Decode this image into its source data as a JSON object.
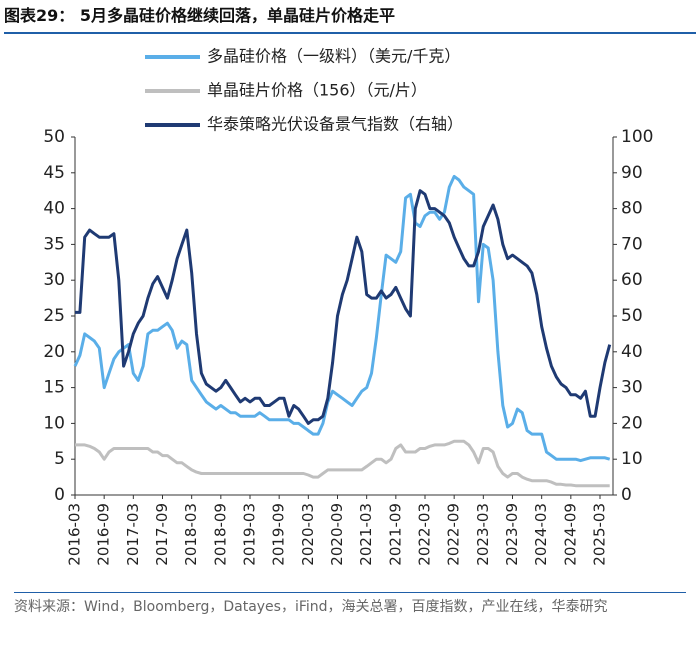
{
  "chart_data": {
    "type": "line",
    "title": "图表29： 5月多晶硅价格继续回落，单晶硅片价格走平",
    "source": "资料来源：Wind，Bloomberg，Datayes，iFind，海关总署，百度指数，产业在线，华泰研究",
    "categories": [
      "2016-03",
      null,
      null,
      null,
      null,
      null,
      "2016-09",
      null,
      null,
      null,
      null,
      null,
      "2017-03",
      null,
      null,
      null,
      null,
      null,
      "2017-09",
      null,
      null,
      null,
      null,
      null,
      "2018-03",
      null,
      null,
      null,
      null,
      null,
      "2018-09",
      null,
      null,
      null,
      null,
      null,
      "2019-03",
      null,
      null,
      null,
      null,
      null,
      "2019-09",
      null,
      null,
      null,
      null,
      null,
      "2020-03",
      null,
      null,
      null,
      null,
      null,
      "2020-09",
      null,
      null,
      null,
      null,
      null,
      "2021-03",
      null,
      null,
      null,
      null,
      null,
      "2021-09",
      null,
      null,
      null,
      null,
      null,
      "2022-03",
      null,
      null,
      null,
      null,
      null,
      "2022-09",
      null,
      null,
      null,
      null,
      null,
      "2023-03",
      null,
      null,
      null,
      null,
      null,
      "2023-09",
      null,
      null,
      null,
      null,
      null,
      "2024-03",
      null,
      null,
      null,
      null,
      null,
      "2024-09",
      null,
      null,
      null,
      null,
      null,
      "2025-03",
      null,
      null
    ],
    "series": [
      {
        "name": "多晶硅价格（一级料）（美元/千克）",
        "color": "#5aaee8",
        "axis": "y",
        "values": [
          18,
          19.5,
          22.5,
          22,
          21.5,
          20.5,
          15,
          17,
          19,
          20,
          20.5,
          21,
          17,
          16,
          18,
          22.5,
          23,
          23,
          23.5,
          24,
          23,
          20.5,
          21.5,
          21,
          16,
          15,
          14,
          13,
          12.5,
          12,
          12.5,
          12,
          11.5,
          11.5,
          11,
          11,
          11,
          11,
          11.5,
          11,
          10.5,
          10.5,
          10.5,
          10.5,
          10.5,
          10,
          10,
          9.5,
          9,
          8.5,
          8.5,
          10,
          13,
          14.5,
          14,
          13.5,
          13,
          12.5,
          13.5,
          14.5,
          15,
          17,
          22,
          28,
          33.5,
          33,
          32.5,
          34,
          41.5,
          42,
          38,
          37.5,
          39,
          39.5,
          39.5,
          38.5,
          39.5,
          43,
          44.5,
          44,
          43,
          42.5,
          42,
          27,
          35,
          34.5,
          30,
          20,
          12.5,
          9.5,
          10,
          12,
          11.5,
          9,
          8.5,
          8.5,
          8.5,
          6,
          5.5,
          5,
          5,
          5,
          5,
          5,
          4.8,
          5,
          5.2,
          5.2,
          5.2,
          5.2,
          5
        ]
      },
      {
        "name": "单晶硅片价格（156）（元/片）",
        "color": "#bfbfbf",
        "axis": "y",
        "values": [
          7,
          7,
          7,
          6.8,
          6.5,
          6,
          5,
          6,
          6.5,
          6.5,
          6.5,
          6.5,
          6.5,
          6.5,
          6.5,
          6.5,
          6,
          6,
          5.5,
          5.5,
          5,
          4.5,
          4.5,
          4,
          3.5,
          3.2,
          3,
          3,
          3,
          3,
          3,
          3,
          3,
          3,
          3,
          3,
          3,
          3,
          3,
          3,
          3,
          3,
          3,
          3,
          3,
          3,
          3,
          3,
          2.8,
          2.5,
          2.5,
          3,
          3.5,
          3.5,
          3.5,
          3.5,
          3.5,
          3.5,
          3.5,
          3.5,
          4,
          4.5,
          5,
          5,
          4.5,
          5,
          6.5,
          7,
          6,
          6,
          6,
          6.5,
          6.5,
          6.8,
          7,
          7,
          7,
          7.2,
          7.5,
          7.5,
          7.5,
          7,
          6,
          4.5,
          6.5,
          6.5,
          6,
          4,
          3,
          2.5,
          3,
          3,
          2.5,
          2.2,
          2,
          2,
          2,
          2,
          1.8,
          1.5,
          1.5,
          1.4,
          1.4,
          1.3,
          1.3,
          1.3,
          1.3,
          1.3,
          1.3,
          1.3,
          1.3
        ]
      },
      {
        "name": "华泰策略光伏设备景气指数（右轴）",
        "color": "#1f3a73",
        "axis": "y2",
        "values": [
          51,
          51,
          72,
          74,
          73,
          72,
          72,
          72,
          73,
          60,
          36,
          40,
          45,
          48,
          50,
          55,
          59,
          61,
          58,
          55,
          60,
          66,
          70,
          74,
          62,
          45,
          34,
          31,
          30,
          29,
          30,
          32,
          30,
          28,
          26,
          27,
          26,
          27,
          27,
          25,
          25,
          26,
          27,
          27,
          22,
          25,
          24,
          22,
          20,
          21,
          21,
          22,
          27,
          37,
          50,
          56,
          60,
          66,
          72,
          68,
          56,
          55,
          55,
          57,
          55,
          56,
          58,
          55,
          52,
          50,
          80,
          85,
          84,
          80,
          80,
          79,
          78,
          76,
          72,
          69,
          66,
          64,
          64,
          68,
          75,
          78,
          81,
          77,
          70,
          66,
          67,
          66,
          65,
          64,
          62,
          56,
          47,
          41,
          36,
          33,
          31,
          30,
          28,
          28,
          27,
          29,
          22,
          22,
          30,
          37,
          42
        ]
      }
    ],
    "ylim": [
      0,
      50
    ],
    "yticks": [
      0,
      5,
      10,
      15,
      20,
      25,
      30,
      35,
      40,
      45,
      50
    ],
    "y2lim": [
      0,
      100
    ],
    "y2ticks": [
      0,
      10,
      20,
      30,
      40,
      50,
      60,
      70,
      80,
      90,
      100
    ]
  }
}
